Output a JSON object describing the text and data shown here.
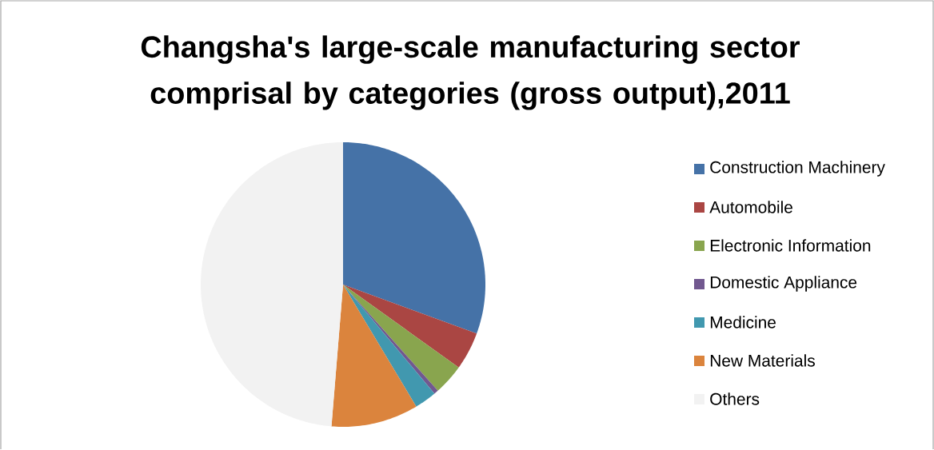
{
  "chart_data": {
    "type": "pie",
    "title": "Changsha's large-scale manufacturing sector comprisal by categories (gross output),2011",
    "categories": [
      "Construction Machinery",
      "Automobile",
      "Electronic Information",
      "Domestic Appliance",
      "Medicine",
      "New Materials",
      "Others"
    ],
    "values": [
      30.6,
      4.3,
      3.5,
      0.5,
      2.5,
      9.9,
      48.7
    ],
    "colors": [
      "#4572a7",
      "#aa4643",
      "#89a54e",
      "#71588f",
      "#4198af",
      "#db843d",
      "#f2f2f2"
    ],
    "legend": "right"
  }
}
